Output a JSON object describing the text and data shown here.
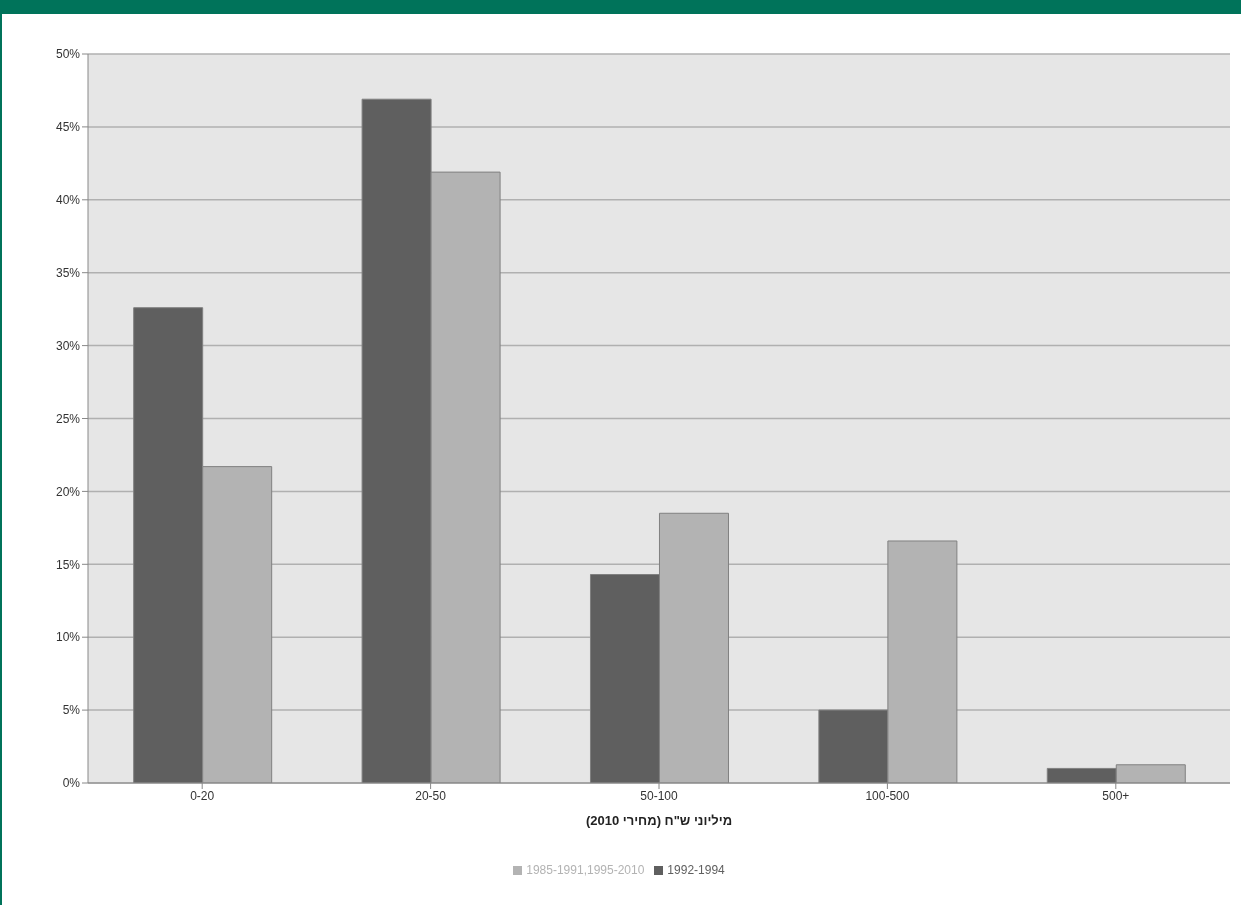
{
  "chart_data": {
    "type": "bar",
    "xlabel": "מיליוני ש\"ח (מחירי 2010)",
    "categories": [
      "0-20",
      "20-50",
      "50-100",
      "100-500",
      "500+"
    ],
    "series": [
      {
        "name": "1992-1994",
        "color": "#5f5f5f",
        "values": [
          32.6,
          46.9,
          14.3,
          5.0,
          1.0
        ]
      },
      {
        "name": "1985-1991,1995-2010",
        "color": "#b3b3b3",
        "values": [
          21.7,
          41.9,
          18.5,
          16.6,
          1.25
        ]
      }
    ],
    "ylim": [
      0,
      50
    ],
    "yticks": [
      {
        "value": 0,
        "label": "0%"
      },
      {
        "value": 5,
        "label": "5%"
      },
      {
        "value": 10,
        "label": "10%"
      },
      {
        "value": 15,
        "label": "15%"
      },
      {
        "value": 20,
        "label": "20%"
      },
      {
        "value": 25,
        "label": "25%"
      },
      {
        "value": 30,
        "label": "30%"
      },
      {
        "value": 35,
        "label": "35%"
      },
      {
        "value": 40,
        "label": "40%"
      },
      {
        "value": 45,
        "label": "45%"
      },
      {
        "value": 50,
        "label": "50%"
      }
    ],
    "grid": "y",
    "legend": "bottom"
  }
}
